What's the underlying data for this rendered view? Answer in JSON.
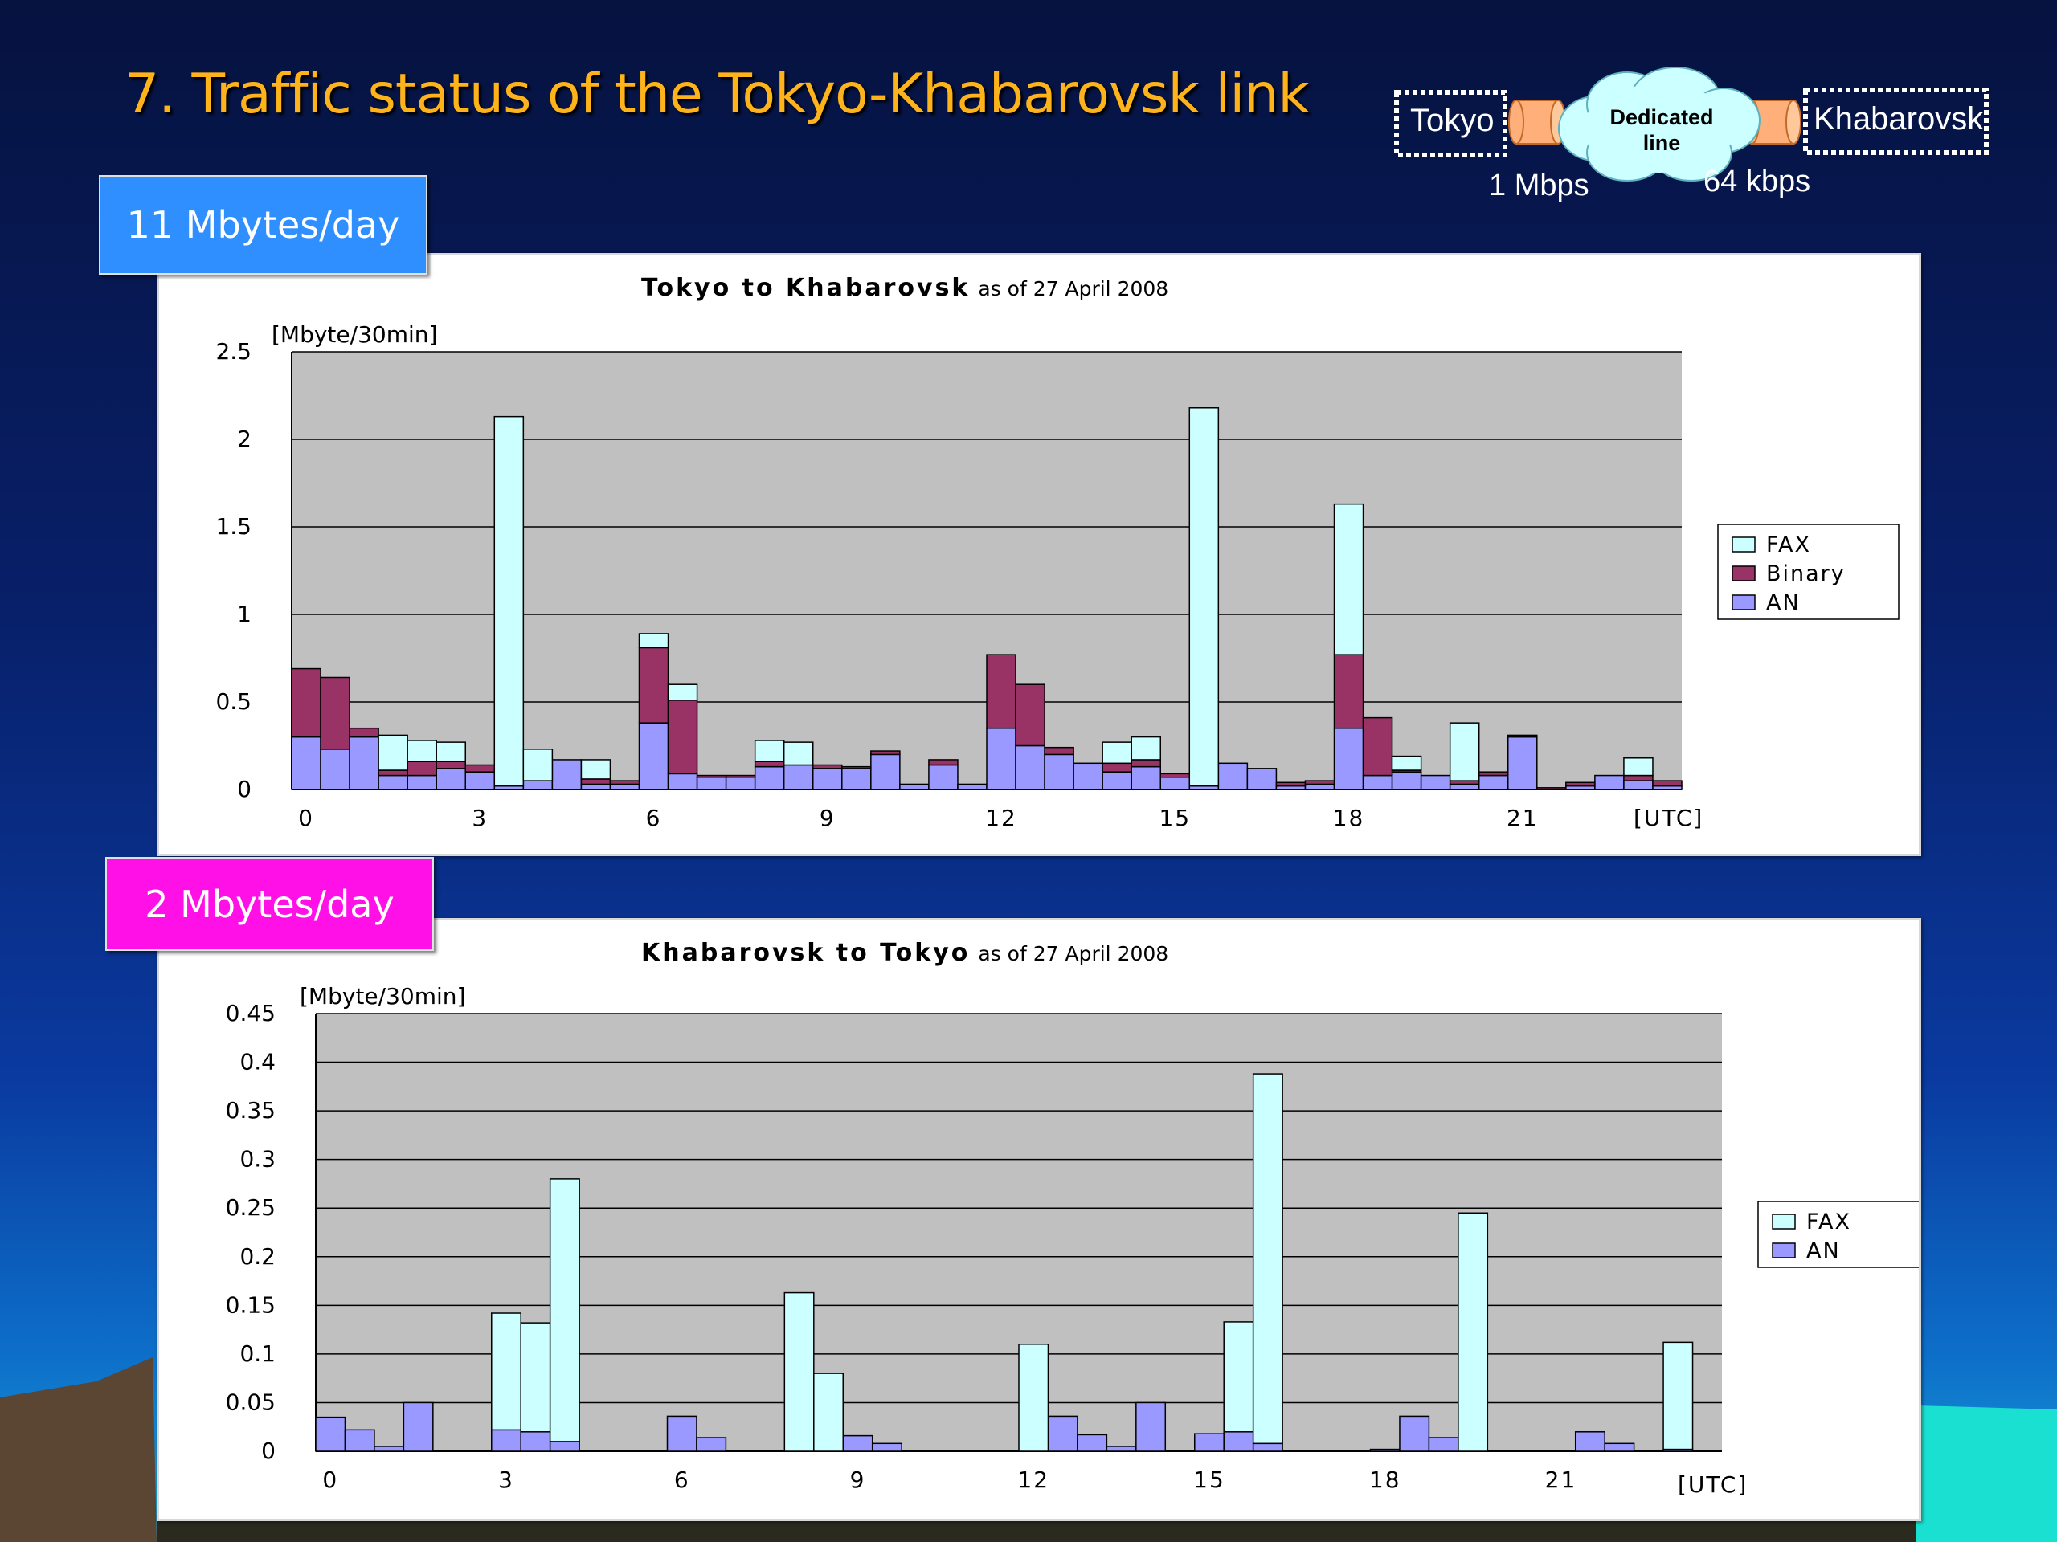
{
  "slide": {
    "title": "7.  Traffic status of the Tokyo-Khabarovsk link",
    "top_badge": "11 Mbytes/day",
    "bottom_badge": "2 Mbytes/day"
  },
  "diagram": {
    "left_node": "Tokyo",
    "right_node": "Khabarovsk",
    "cloud_line1": "Dedicated",
    "cloud_line2": "line",
    "left_rate": "1 Mbps",
    "right_rate": "64 kbps"
  },
  "colors": {
    "fax": "#ccffff",
    "binary": "#993366",
    "an": "#9999ff",
    "plot_bg": "#c0c0c0",
    "title_orange": "#ffb31a",
    "badge_blue": "#2f8fff",
    "badge_magenta": "#ff10e6"
  },
  "chart_data": [
    {
      "type": "bar",
      "stacked": true,
      "title": "Tokyo to Khabarovsk",
      "subtitle": "as of 27 April 2008",
      "ylabel": "[Mbyte/30min]",
      "xlabel": "[UTC]",
      "ylim": [
        0,
        2.5
      ],
      "yticks": [
        "0",
        "0.5",
        "1",
        "1.5",
        "2",
        "2.5"
      ],
      "yticks_values": [
        0,
        0.5,
        1,
        1.5,
        2,
        2.5
      ],
      "xtick_labels": [
        "0",
        "3",
        "6",
        "9",
        "12",
        "15",
        "18",
        "21"
      ],
      "xtick_bin_index": [
        0,
        6,
        12,
        18,
        24,
        30,
        36,
        42
      ],
      "grid": true,
      "legend_position": "right",
      "legend": [
        "FAX",
        "Binary",
        "AN"
      ],
      "series": [
        {
          "name": "AN",
          "values": [
            0.3,
            0.23,
            0.3,
            0.08,
            0.08,
            0.12,
            0.1,
            0.02,
            0.05,
            0.17,
            0.03,
            0.03,
            0.38,
            0.09,
            0.07,
            0.07,
            0.13,
            0.14,
            0.12,
            0.12,
            0.2,
            0.03,
            0.14,
            0.03,
            0.35,
            0.25,
            0.2,
            0.15,
            0.1,
            0.13,
            0.07,
            0.02,
            0.15,
            0.12,
            0.02,
            0.03,
            0.35,
            0.08,
            0.1,
            0.08,
            0.03,
            0.08,
            0.3,
            0.0,
            0.02,
            0.08,
            0.05,
            0.02
          ]
        },
        {
          "name": "Binary",
          "values": [
            0.39,
            0.41,
            0.05,
            0.03,
            0.08,
            0.04,
            0.04,
            0.0,
            0.0,
            0.0,
            0.03,
            0.02,
            0.43,
            0.42,
            0.01,
            0.01,
            0.03,
            0.0,
            0.02,
            0.01,
            0.02,
            0.0,
            0.03,
            0.0,
            0.42,
            0.35,
            0.04,
            0.0,
            0.05,
            0.04,
            0.02,
            0.0,
            0.0,
            0.0,
            0.02,
            0.02,
            0.42,
            0.33,
            0.01,
            0.0,
            0.02,
            0.02,
            0.01,
            0.01,
            0.02,
            0.0,
            0.03,
            0.03
          ]
        },
        {
          "name": "FAX",
          "values": [
            0.0,
            0.0,
            0.0,
            0.2,
            0.12,
            0.11,
            0.0,
            2.11,
            0.18,
            0.0,
            0.11,
            0.0,
            0.08,
            0.09,
            0.0,
            0.0,
            0.12,
            0.13,
            0.0,
            0.0,
            0.0,
            0.0,
            0.0,
            0.0,
            0.0,
            0.0,
            0.0,
            0.0,
            0.12,
            0.13,
            0.0,
            2.16,
            0.0,
            0.0,
            0.0,
            0.0,
            0.86,
            0.0,
            0.08,
            0.0,
            0.33,
            0.0,
            0.0,
            0.0,
            0.0,
            0.0,
            0.1,
            0.0
          ]
        }
      ]
    },
    {
      "type": "bar",
      "stacked": true,
      "title": "Khabarovsk to Tokyo",
      "subtitle": "as of 27 April 2008",
      "ylabel": "[Mbyte/30min]",
      "xlabel": "[UTC]",
      "ylim": [
        0,
        0.45
      ],
      "yticks": [
        "0",
        "0.05",
        "0.1",
        "0.15",
        "0.2",
        "0.25",
        "0.3",
        "0.35",
        "0.4",
        "0.45"
      ],
      "yticks_values": [
        0,
        0.05,
        0.1,
        0.15,
        0.2,
        0.25,
        0.3,
        0.35,
        0.4,
        0.45
      ],
      "xtick_labels": [
        "0",
        "3",
        "6",
        "9",
        "12",
        "15",
        "18",
        "21"
      ],
      "xtick_bin_index": [
        0,
        6,
        12,
        18,
        24,
        30,
        36,
        42
      ],
      "grid": true,
      "legend_position": "right",
      "legend": [
        "FAX",
        "AN"
      ],
      "series": [
        {
          "name": "AN",
          "values": [
            0.035,
            0.022,
            0.005,
            0.05,
            0.0,
            0.0,
            0.022,
            0.02,
            0.01,
            0.0,
            0.0,
            0.0,
            0.036,
            0.014,
            0.0,
            0.0,
            0.0,
            0.0,
            0.016,
            0.008,
            0.0,
            0.0,
            0.0,
            0.0,
            0.0,
            0.036,
            0.017,
            0.005,
            0.05,
            0.0,
            0.018,
            0.02,
            0.008,
            0.0,
            0.0,
            0.0,
            0.002,
            0.036,
            0.014,
            0.0,
            0.0,
            0.0,
            0.0,
            0.02,
            0.008,
            0.0,
            0.002,
            0.0
          ]
        },
        {
          "name": "FAX",
          "values": [
            0.0,
            0.0,
            0.0,
            0.0,
            0.0,
            0.0,
            0.12,
            0.112,
            0.27,
            0.0,
            0.0,
            0.0,
            0.0,
            0.0,
            0.0,
            0.0,
            0.163,
            0.08,
            0.0,
            0.0,
            0.0,
            0.0,
            0.0,
            0.0,
            0.11,
            0.0,
            0.0,
            0.0,
            0.0,
            0.0,
            0.0,
            0.113,
            0.38,
            0.0,
            0.0,
            0.0,
            0.0,
            0.0,
            0.0,
            0.245,
            0.0,
            0.0,
            0.0,
            0.0,
            0.0,
            0.0,
            0.11,
            0.0
          ]
        }
      ]
    }
  ]
}
